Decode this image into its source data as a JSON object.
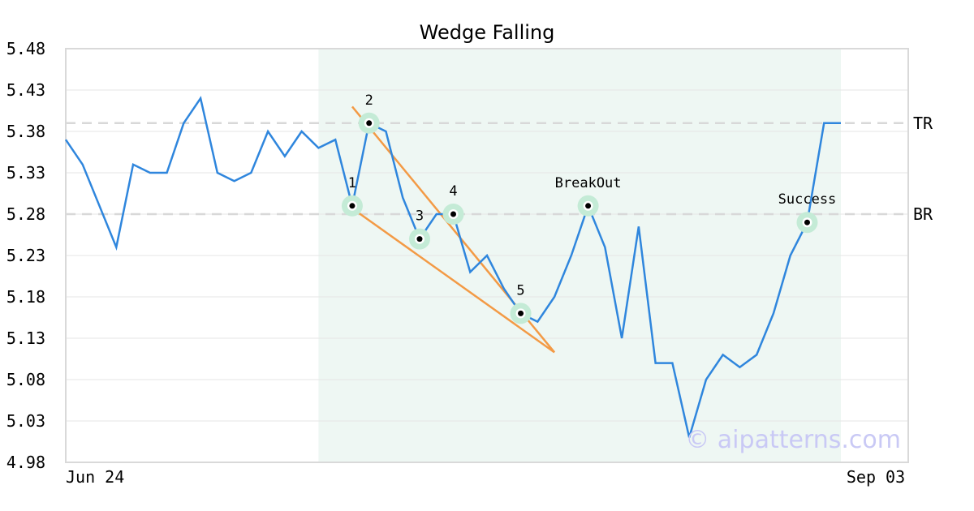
{
  "chart_data": {
    "type": "line",
    "title": "Wedge Falling",
    "xlabel": "",
    "ylabel": "",
    "ylim": [
      4.98,
      5.48
    ],
    "yticks": [
      "5.48",
      "5.43",
      "5.38",
      "5.33",
      "5.28",
      "5.23",
      "5.18",
      "5.13",
      "5.08",
      "5.03",
      "4.98"
    ],
    "xtick_labels": [
      {
        "index": 0,
        "label": "Jun 24"
      },
      {
        "index": 46,
        "label": "Sep 03"
      }
    ],
    "grid": "horizontal",
    "series": [
      {
        "color": "#2f86dd",
        "values": [
          5.37,
          5.34,
          5.29,
          5.24,
          5.34,
          5.33,
          5.33,
          5.39,
          5.42,
          5.33,
          5.32,
          5.33,
          5.38,
          5.35,
          5.38,
          5.36,
          5.37,
          5.29,
          5.39,
          5.38,
          5.3,
          5.25,
          5.28,
          5.28,
          5.21,
          5.23,
          5.19,
          5.16,
          5.15,
          5.18,
          5.23,
          5.29,
          5.24,
          5.13,
          5.265,
          5.1,
          5.1,
          5.01,
          5.08,
          5.11,
          5.095,
          5.11,
          5.16,
          5.23,
          5.27,
          5.39,
          5.39
        ]
      }
    ],
    "highlight_region": {
      "start_index": 15,
      "end_index": 46,
      "color": "#eef7f3"
    },
    "levels": [
      {
        "label": "TR",
        "value": 5.39
      },
      {
        "label": "BR",
        "value": 5.28
      }
    ],
    "trendlines": [
      {
        "color": "#f39a45",
        "from": {
          "index": 17,
          "value": 5.41
        },
        "to": {
          "index": 29,
          "value": 5.113
        }
      },
      {
        "color": "#f39a45",
        "from": {
          "index": 17,
          "value": 5.287
        },
        "to": {
          "index": 29,
          "value": 5.113
        }
      }
    ],
    "points": [
      {
        "label": "1",
        "index": 17,
        "value": 5.29
      },
      {
        "label": "2",
        "index": 18,
        "value": 5.39
      },
      {
        "label": "3",
        "index": 21,
        "value": 5.25
      },
      {
        "label": "4",
        "index": 23,
        "value": 5.28
      },
      {
        "label": "5",
        "index": 27,
        "value": 5.16
      },
      {
        "label": "BreakOut",
        "index": 31,
        "value": 5.29
      },
      {
        "label": "Success",
        "index": 44,
        "value": 5.27
      }
    ],
    "watermark": "© aipatterns.com"
  }
}
